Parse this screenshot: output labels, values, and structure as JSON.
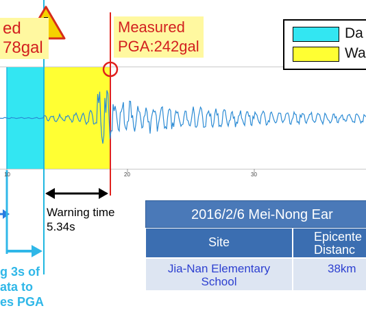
{
  "labels": {
    "left_label_line1": "ed",
    "left_label_line2": "78gal",
    "measured_line1": "Measured",
    "measured_line2": "PGA:242gal",
    "warning_time_line1": "Warning time",
    "warning_time_line2": "5.34s",
    "note_line1": "g 3s of",
    "note_line2": "ata to",
    "note_line3": "es PGA"
  },
  "legend": {
    "items": [
      {
        "label": "Da",
        "color": "#33e6f2"
      },
      {
        "label": "Wa",
        "color": "#ffff33"
      }
    ]
  },
  "axis": {
    "ticks": [
      "10",
      "20",
      "30"
    ]
  },
  "table": {
    "title": "2016/2/6 Mei-Nong Ear",
    "headers": [
      "Site",
      "Epicente\nDistanc"
    ],
    "rows": [
      [
        "Jia-Nan Elementary\nSchool",
        "38km"
      ]
    ]
  },
  "colors": {
    "cyan_region": "#33e6f2",
    "yellow_region": "#ffff33",
    "trace": "#2a8ad4",
    "marker_red": "#e0201c",
    "warning_icon": "#f5d100"
  },
  "chart_data": {
    "type": "line",
    "title": "",
    "xlabel": "",
    "ylabel": "",
    "xlim": [
      9.5,
      38.5
    ],
    "x_ticks": [
      10,
      20,
      30
    ],
    "series": [
      {
        "values_description": "seismic waveform trace"
      }
    ]
  }
}
